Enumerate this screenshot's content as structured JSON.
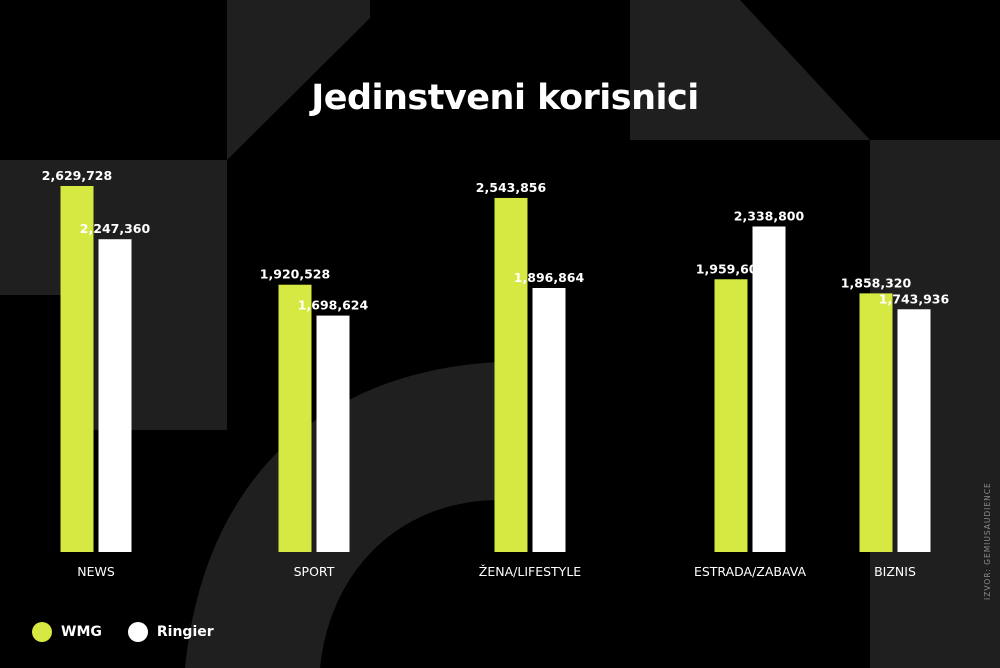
{
  "colors": {
    "background": "#000000",
    "shape": "#1f1f1f",
    "wmg": "#d6e842",
    "ringier": "#ffffff",
    "text": "#ffffff"
  },
  "chart_data": {
    "type": "bar",
    "title": "Jedinstveni korisnici",
    "categories": [
      "NEWS",
      "SPORT",
      "ŽENA/LIFESTYLE",
      "ESTRADA/ZABAVA",
      "BIZNIS"
    ],
    "series": [
      {
        "name": "WMG",
        "color": "#d6e842",
        "values": [
          2629728,
          1920528,
          2543856,
          1959600,
          1858320
        ],
        "labels": [
          "2,629,728",
          "1,920,528",
          "2,543,856",
          "1,959,600",
          "1,858,320"
        ]
      },
      {
        "name": "Ringier",
        "color": "#ffffff",
        "values": [
          2247360,
          1698624,
          1896864,
          2338800,
          1743936
        ],
        "labels": [
          "2,247,360",
          "1,698,624",
          "1,896,864",
          "2,338,800",
          "1,743,936"
        ]
      }
    ],
    "ylim": [
      0,
      2629728
    ],
    "grid": false,
    "legend": "bottom-left",
    "source": "IZVOR: GEMIUSAUDIENCE"
  }
}
